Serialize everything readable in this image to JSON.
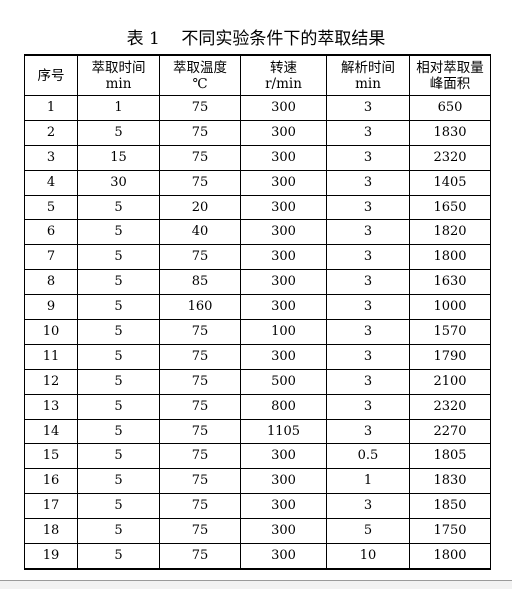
{
  "caption": "表 1    不同实验条件下的萃取结果",
  "columns": [
    {
      "line1": "序号",
      "line2": ""
    },
    {
      "line1": "萃取时间",
      "line2": "min"
    },
    {
      "line1": "萃取温度",
      "line2": "℃"
    },
    {
      "line1": "转速",
      "line2": "r/min"
    },
    {
      "line1": "解析时间",
      "line2": "min"
    },
    {
      "line1": "相对萃取量",
      "line2": "峰面积"
    }
  ],
  "rows": [
    [
      "1",
      "1",
      "75",
      "300",
      "3",
      "650"
    ],
    [
      "2",
      "5",
      "75",
      "300",
      "3",
      "1830"
    ],
    [
      "3",
      "15",
      "75",
      "300",
      "3",
      "2320"
    ],
    [
      "4",
      "30",
      "75",
      "300",
      "3",
      "1405"
    ],
    [
      "5",
      "5",
      "20",
      "300",
      "3",
      "1650"
    ],
    [
      "6",
      "5",
      "40",
      "300",
      "3",
      "1820"
    ],
    [
      "7",
      "5",
      "75",
      "300",
      "3",
      "1800"
    ],
    [
      "8",
      "5",
      "85",
      "300",
      "3",
      "1630"
    ],
    [
      "9",
      "5",
      "160",
      "300",
      "3",
      "1000"
    ],
    [
      "10",
      "5",
      "75",
      "100",
      "3",
      "1570"
    ],
    [
      "11",
      "5",
      "75",
      "300",
      "3",
      "1790"
    ],
    [
      "12",
      "5",
      "75",
      "500",
      "3",
      "2100"
    ],
    [
      "13",
      "5",
      "75",
      "800",
      "3",
      "2320"
    ],
    [
      "14",
      "5",
      "75",
      "1105",
      "3",
      "2270"
    ],
    [
      "15",
      "5",
      "75",
      "300",
      "0.5",
      "1805"
    ],
    [
      "16",
      "5",
      "75",
      "300",
      "1",
      "1830"
    ],
    [
      "17",
      "5",
      "75",
      "300",
      "3",
      "1850"
    ],
    [
      "18",
      "5",
      "75",
      "300",
      "5",
      "1750"
    ],
    [
      "19",
      "5",
      "75",
      "300",
      "10",
      "1800"
    ]
  ]
}
